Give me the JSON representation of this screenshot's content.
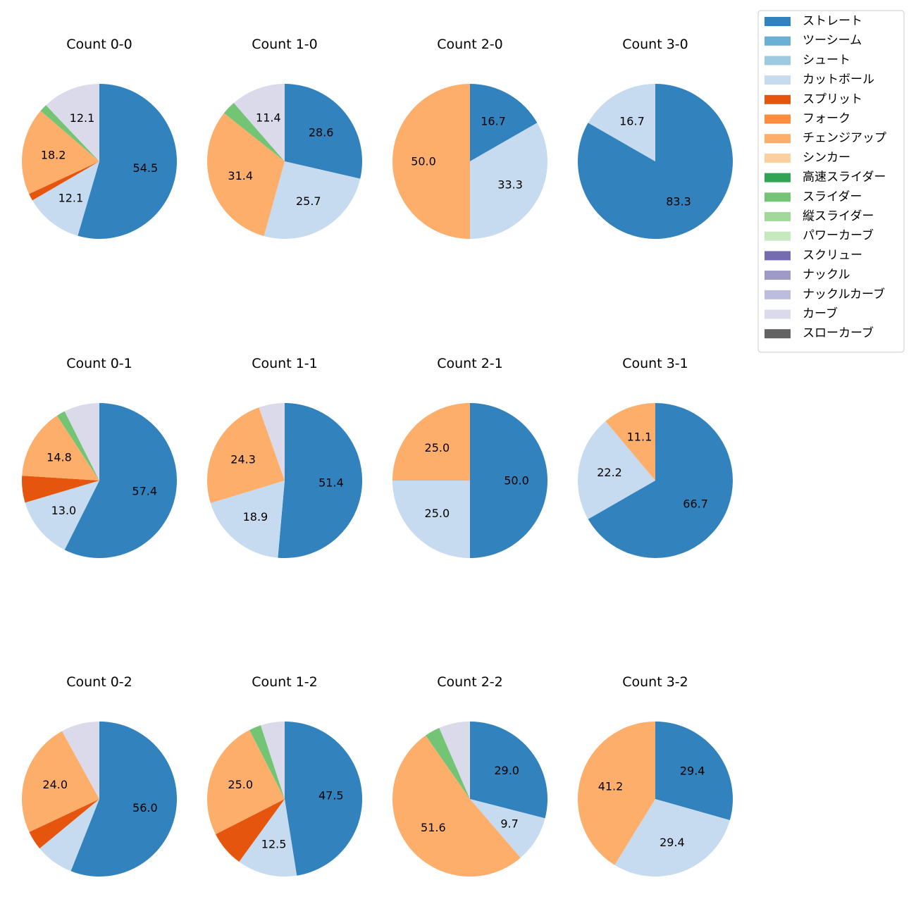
{
  "chart_data": {
    "type": "pie",
    "categories": [
      "ストレート",
      "ツーシーム",
      "シュート",
      "カットボール",
      "スプリット",
      "フォーク",
      "チェンジアップ",
      "シンカー",
      "高速スライダー",
      "スライダー",
      "縦スライダー",
      "パワーカーブ",
      "スクリュー",
      "ナックル",
      "ナックルカーブ",
      "カーブ",
      "スローカーブ"
    ],
    "colors": [
      "#3182bd",
      "#6baed6",
      "#9ecae1",
      "#c6dbef",
      "#e6550d",
      "#fd8d3c",
      "#fdae6b",
      "#fdd0a2",
      "#31a354",
      "#74c476",
      "#a1d99b",
      "#c7e9c0",
      "#756bb1",
      "#9e9ac8",
      "#bcbddc",
      "#dadaeb",
      "#636363"
    ],
    "legend": {
      "position": "top-right"
    },
    "label_threshold": 9,
    "charts": [
      {
        "title": "Count 0-0",
        "slices": [
          {
            "category": "ストレート",
            "value": 54.5
          },
          {
            "category": "カットボール",
            "value": 12.1
          },
          {
            "category": "スプリット",
            "value": 1.5
          },
          {
            "category": "チェンジアップ",
            "value": 18.2
          },
          {
            "category": "スライダー",
            "value": 1.6
          },
          {
            "category": "カーブ",
            "value": 12.1
          }
        ]
      },
      {
        "title": "Count 1-0",
        "slices": [
          {
            "category": "ストレート",
            "value": 28.6
          },
          {
            "category": "カットボール",
            "value": 25.7
          },
          {
            "category": "チェンジアップ",
            "value": 31.4
          },
          {
            "category": "スライダー",
            "value": 2.9
          },
          {
            "category": "カーブ",
            "value": 11.4
          }
        ]
      },
      {
        "title": "Count 2-0",
        "slices": [
          {
            "category": "ストレート",
            "value": 16.7
          },
          {
            "category": "カットボール",
            "value": 33.3
          },
          {
            "category": "チェンジアップ",
            "value": 50.0
          }
        ]
      },
      {
        "title": "Count 3-0",
        "slices": [
          {
            "category": "ストレート",
            "value": 83.3
          },
          {
            "category": "カットボール",
            "value": 16.7
          }
        ]
      },
      {
        "title": "Count 0-1",
        "slices": [
          {
            "category": "ストレート",
            "value": 57.4
          },
          {
            "category": "カットボール",
            "value": 13.0
          },
          {
            "category": "スプリット",
            "value": 5.6
          },
          {
            "category": "チェンジアップ",
            "value": 14.8
          },
          {
            "category": "スライダー",
            "value": 1.8
          },
          {
            "category": "カーブ",
            "value": 7.4
          }
        ]
      },
      {
        "title": "Count 1-1",
        "slices": [
          {
            "category": "ストレート",
            "value": 51.4
          },
          {
            "category": "カットボール",
            "value": 18.9
          },
          {
            "category": "チェンジアップ",
            "value": 24.3
          },
          {
            "category": "カーブ",
            "value": 5.4
          }
        ]
      },
      {
        "title": "Count 2-1",
        "slices": [
          {
            "category": "ストレート",
            "value": 50.0
          },
          {
            "category": "カットボール",
            "value": 25.0
          },
          {
            "category": "チェンジアップ",
            "value": 25.0
          }
        ]
      },
      {
        "title": "Count 3-1",
        "slices": [
          {
            "category": "ストレート",
            "value": 66.7
          },
          {
            "category": "カットボール",
            "value": 22.2
          },
          {
            "category": "チェンジアップ",
            "value": 11.1
          }
        ]
      },
      {
        "title": "Count 0-2",
        "slices": [
          {
            "category": "ストレート",
            "value": 56.0
          },
          {
            "category": "カットボール",
            "value": 8.0
          },
          {
            "category": "スプリット",
            "value": 4.0
          },
          {
            "category": "チェンジアップ",
            "value": 24.0
          },
          {
            "category": "カーブ",
            "value": 8.0
          }
        ]
      },
      {
        "title": "Count 1-2",
        "slices": [
          {
            "category": "ストレート",
            "value": 47.5
          },
          {
            "category": "カットボール",
            "value": 12.5
          },
          {
            "category": "スプリット",
            "value": 7.5
          },
          {
            "category": "チェンジアップ",
            "value": 25.0
          },
          {
            "category": "スライダー",
            "value": 2.5
          },
          {
            "category": "カーブ",
            "value": 5.0
          }
        ]
      },
      {
        "title": "Count 2-2",
        "slices": [
          {
            "category": "ストレート",
            "value": 29.0
          },
          {
            "category": "カットボール",
            "value": 9.7
          },
          {
            "category": "チェンジアップ",
            "value": 51.6
          },
          {
            "category": "スライダー",
            "value": 3.2
          },
          {
            "category": "カーブ",
            "value": 6.5
          }
        ]
      },
      {
        "title": "Count 3-2",
        "slices": [
          {
            "category": "ストレート",
            "value": 29.4
          },
          {
            "category": "カットボール",
            "value": 29.4
          },
          {
            "category": "チェンジアップ",
            "value": 41.2
          }
        ]
      }
    ]
  }
}
